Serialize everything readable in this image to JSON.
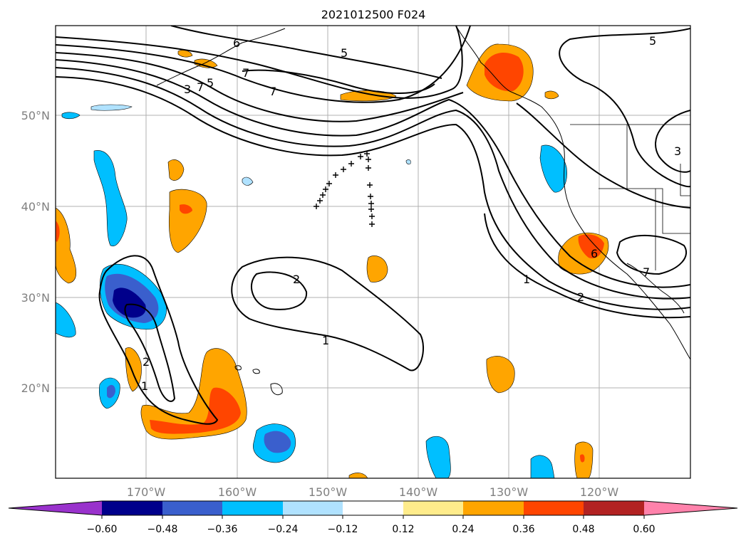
{
  "title": "2021012500 F024",
  "lon_labels": [
    "170°W",
    "160°W",
    "150°W",
    "140°W",
    "130°W",
    "120°W"
  ],
  "lat_labels": [
    "50°N",
    "40°N",
    "30°N",
    "20°N"
  ],
  "colorbar": {
    "ticks": [
      "−0.60",
      "−0.48",
      "−0.36",
      "−0.24",
      "−0.12",
      "0.12",
      "0.24",
      "0.36",
      "0.48",
      "0.60"
    ],
    "colors": [
      "#9932cc",
      "#00008b",
      "#3a5fcd",
      "#00bfff",
      "#b0e2ff",
      "#ffffff",
      "#ffec8b",
      "#ffa500",
      "#ff4500",
      "#b22222",
      "#ff82ab"
    ]
  },
  "contour_labels": [
    "6",
    "5",
    "5",
    "7",
    "7",
    "3",
    "7",
    "5",
    "3",
    "2",
    "1",
    "1",
    "2",
    "6",
    "7",
    "2",
    "1"
  ]
}
